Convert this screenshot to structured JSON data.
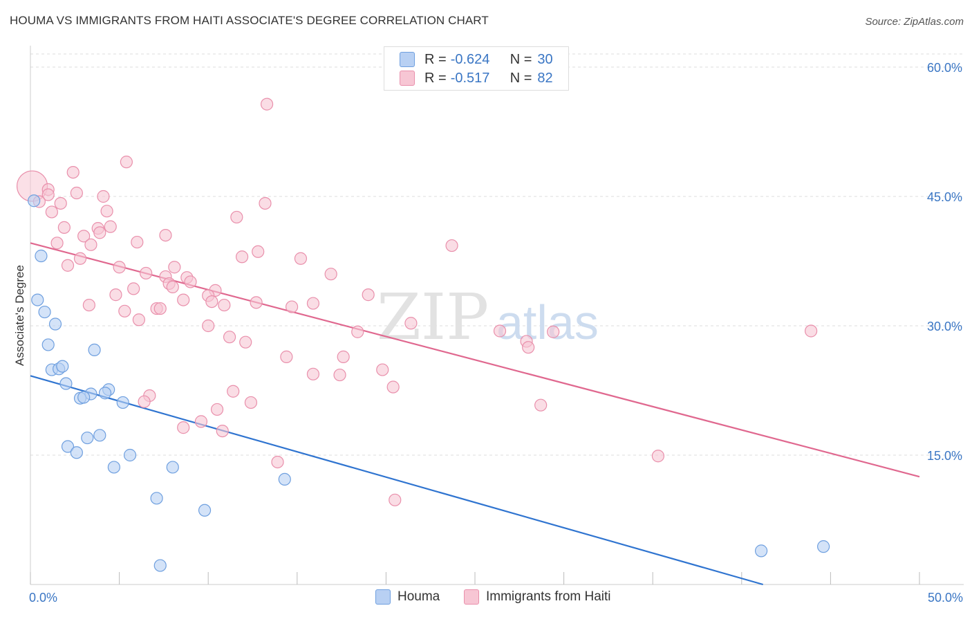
{
  "title": "HOUMA VS IMMIGRANTS FROM HAITI ASSOCIATE'S DEGREE CORRELATION CHART",
  "source": "Source: ZipAtlas.com",
  "watermark": {
    "zip": "ZIP",
    "atlas": "atlas"
  },
  "colors": {
    "blue_fill": "#b8d0f3",
    "blue_stroke": "#6e9fdf",
    "blue_line": "#2f74d0",
    "pink_fill": "#f7c6d4",
    "pink_stroke": "#e98fab",
    "pink_line": "#e0688f",
    "axis_text": "#3a76c4",
    "grid": "#dddddd"
  },
  "legend": {
    "rows": [
      {
        "r_label": "R =",
        "r_value": "-0.624",
        "n_label": "N =",
        "n_value": "30"
      },
      {
        "r_label": "R =",
        "r_value": "-0.517",
        "n_label": "N =",
        "n_value": "82"
      }
    ]
  },
  "bottom_legend": [
    "Houma",
    "Immigrants from Haiti"
  ],
  "chart_data": {
    "type": "scatter",
    "ylabel": "Associate's Degree",
    "xlim": [
      0,
      50
    ],
    "ylim": [
      0,
      60
    ],
    "x_tick_labels": [
      "0.0%",
      "50.0%"
    ],
    "y_tick_labels": [
      "15.0%",
      "30.0%",
      "45.0%",
      "60.0%"
    ],
    "y_ticks": [
      15,
      30,
      45,
      60
    ],
    "grid": true,
    "series": [
      {
        "name": "Houma",
        "color": "#6e9fdf",
        "points": [
          [
            0.2,
            44.5
          ],
          [
            0.6,
            38.1
          ],
          [
            0.4,
            33.0
          ],
          [
            0.8,
            31.6
          ],
          [
            1.4,
            30.2
          ],
          [
            1.0,
            27.8
          ],
          [
            3.6,
            27.2
          ],
          [
            1.2,
            24.9
          ],
          [
            1.6,
            25.0
          ],
          [
            1.8,
            25.3
          ],
          [
            2.0,
            23.3
          ],
          [
            4.4,
            22.6
          ],
          [
            3.4,
            22.1
          ],
          [
            4.2,
            22.2
          ],
          [
            2.8,
            21.6
          ],
          [
            3.0,
            21.7
          ],
          [
            5.2,
            21.1
          ],
          [
            3.2,
            17.0
          ],
          [
            3.9,
            17.3
          ],
          [
            2.1,
            16.0
          ],
          [
            2.6,
            15.3
          ],
          [
            5.6,
            15.0
          ],
          [
            4.7,
            13.6
          ],
          [
            8.0,
            13.6
          ],
          [
            14.3,
            12.2
          ],
          [
            7.1,
            10.0
          ],
          [
            9.8,
            8.6
          ],
          [
            7.3,
            2.2
          ],
          [
            41.1,
            3.9
          ],
          [
            44.6,
            4.4
          ]
        ],
        "trend": [
          [
            0,
            24.2
          ],
          [
            41.2,
            0
          ]
        ]
      },
      {
        "name": "Immigrants from Haiti",
        "color": "#e98fab",
        "points": [
          [
            0.1,
            46.2
          ],
          [
            1.0,
            45.8
          ],
          [
            1.0,
            45.2
          ],
          [
            0.5,
            44.4
          ],
          [
            1.7,
            44.2
          ],
          [
            1.2,
            43.2
          ],
          [
            2.6,
            45.4
          ],
          [
            4.1,
            45.0
          ],
          [
            2.4,
            47.8
          ],
          [
            5.4,
            49.0
          ],
          [
            4.3,
            43.3
          ],
          [
            13.3,
            55.7
          ],
          [
            13.2,
            44.2
          ],
          [
            11.6,
            42.6
          ],
          [
            1.9,
            41.4
          ],
          [
            4.5,
            41.5
          ],
          [
            3.8,
            41.3
          ],
          [
            3.9,
            40.8
          ],
          [
            3.0,
            40.4
          ],
          [
            7.6,
            40.5
          ],
          [
            1.5,
            39.6
          ],
          [
            3.4,
            39.4
          ],
          [
            6.0,
            39.7
          ],
          [
            23.7,
            39.3
          ],
          [
            12.8,
            38.6
          ],
          [
            11.9,
            38.0
          ],
          [
            15.2,
            37.8
          ],
          [
            2.8,
            37.8
          ],
          [
            2.1,
            37.0
          ],
          [
            5.0,
            36.8
          ],
          [
            8.1,
            36.8
          ],
          [
            6.5,
            36.1
          ],
          [
            16.9,
            36.0
          ],
          [
            7.6,
            35.7
          ],
          [
            8.8,
            35.6
          ],
          [
            9.0,
            35.1
          ],
          [
            7.8,
            34.9
          ],
          [
            8.0,
            34.5
          ],
          [
            5.8,
            34.3
          ],
          [
            10.4,
            34.1
          ],
          [
            4.8,
            33.6
          ],
          [
            10.0,
            33.5
          ],
          [
            19.0,
            33.6
          ],
          [
            8.6,
            33.0
          ],
          [
            10.2,
            32.8
          ],
          [
            12.7,
            32.7
          ],
          [
            15.9,
            32.6
          ],
          [
            14.7,
            32.2
          ],
          [
            3.3,
            32.4
          ],
          [
            10.9,
            32.4
          ],
          [
            7.1,
            32.0
          ],
          [
            7.3,
            32.0
          ],
          [
            5.3,
            31.7
          ],
          [
            6.1,
            30.7
          ],
          [
            21.4,
            30.3
          ],
          [
            10.0,
            30.0
          ],
          [
            26.4,
            29.4
          ],
          [
            29.4,
            29.3
          ],
          [
            18.4,
            29.3
          ],
          [
            43.9,
            29.4
          ],
          [
            11.2,
            28.7
          ],
          [
            27.9,
            28.2
          ],
          [
            12.1,
            28.1
          ],
          [
            28.0,
            27.5
          ],
          [
            14.4,
            26.4
          ],
          [
            17.6,
            26.4
          ],
          [
            17.4,
            24.3
          ],
          [
            19.8,
            24.9
          ],
          [
            15.9,
            24.4
          ],
          [
            20.4,
            22.9
          ],
          [
            11.4,
            22.4
          ],
          [
            6.7,
            21.9
          ],
          [
            6.4,
            21.2
          ],
          [
            12.4,
            21.1
          ],
          [
            28.7,
            20.8
          ],
          [
            10.5,
            20.3
          ],
          [
            9.6,
            18.9
          ],
          [
            8.6,
            18.2
          ],
          [
            10.8,
            17.8
          ],
          [
            13.9,
            14.2
          ],
          [
            35.3,
            14.9
          ],
          [
            20.5,
            9.8
          ]
        ],
        "trend": [
          [
            0,
            39.6
          ],
          [
            50,
            12.5
          ]
        ]
      }
    ]
  }
}
